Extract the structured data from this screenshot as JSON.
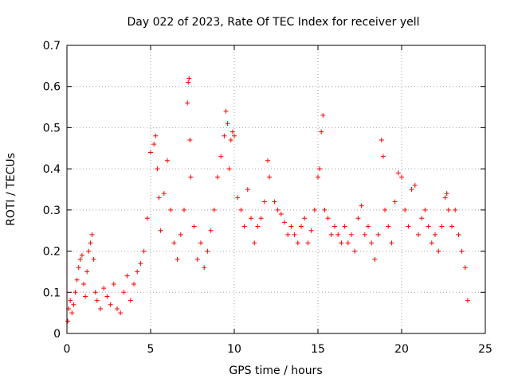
{
  "chart_data": {
    "type": "scatter",
    "title": "Day 022 of 2023, Rate Of TEC Index for receiver yell",
    "xlabel": "GPS time / hours",
    "ylabel": "ROTI / TECUs",
    "xlim": [
      0,
      25
    ],
    "ylim": [
      0,
      0.7
    ],
    "xticks": [
      0,
      5,
      10,
      15,
      20,
      25
    ],
    "xtick_labels": [
      "0",
      "5",
      "10",
      "15",
      "20",
      "25"
    ],
    "yticks": [
      0,
      0.1,
      0.2,
      0.3,
      0.4,
      0.5,
      0.6,
      0.7
    ],
    "ytick_labels": [
      "0",
      "0.1",
      "0.2",
      "0.3",
      "0.4",
      "0.5",
      "0.6",
      "0.7"
    ],
    "grid": true,
    "marker": "+",
    "color": "#ff0000",
    "series": [
      {
        "name": "ROTI",
        "points": [
          [
            0.05,
            0.03
          ],
          [
            0.1,
            0.06
          ],
          [
            0.2,
            0.08
          ],
          [
            0.3,
            0.05
          ],
          [
            0.4,
            0.07
          ],
          [
            0.5,
            0.1
          ],
          [
            0.6,
            0.13
          ],
          [
            0.7,
            0.16
          ],
          [
            0.8,
            0.18
          ],
          [
            0.9,
            0.19
          ],
          [
            1.0,
            0.12
          ],
          [
            1.1,
            0.09
          ],
          [
            1.2,
            0.15
          ],
          [
            1.3,
            0.2
          ],
          [
            1.4,
            0.22
          ],
          [
            1.5,
            0.24
          ],
          [
            1.6,
            0.18
          ],
          [
            1.7,
            0.1
          ],
          [
            1.8,
            0.08
          ],
          [
            2.0,
            0.06
          ],
          [
            2.2,
            0.11
          ],
          [
            2.4,
            0.09
          ],
          [
            2.6,
            0.07
          ],
          [
            2.8,
            0.12
          ],
          [
            3.0,
            0.06
          ],
          [
            3.2,
            0.05
          ],
          [
            3.4,
            0.1
          ],
          [
            3.6,
            0.14
          ],
          [
            3.8,
            0.08
          ],
          [
            4.0,
            0.12
          ],
          [
            4.2,
            0.15
          ],
          [
            4.4,
            0.17
          ],
          [
            4.6,
            0.2
          ],
          [
            4.8,
            0.28
          ],
          [
            5.0,
            0.44
          ],
          [
            5.2,
            0.46
          ],
          [
            5.3,
            0.48
          ],
          [
            5.4,
            0.4
          ],
          [
            5.5,
            0.33
          ],
          [
            5.6,
            0.25
          ],
          [
            5.8,
            0.34
          ],
          [
            6.0,
            0.42
          ],
          [
            6.2,
            0.3
          ],
          [
            6.4,
            0.22
          ],
          [
            6.6,
            0.18
          ],
          [
            6.8,
            0.24
          ],
          [
            7.0,
            0.3
          ],
          [
            7.2,
            0.56
          ],
          [
            7.25,
            0.61
          ],
          [
            7.3,
            0.62
          ],
          [
            7.35,
            0.47
          ],
          [
            7.4,
            0.38
          ],
          [
            7.6,
            0.26
          ],
          [
            7.8,
            0.18
          ],
          [
            8.0,
            0.22
          ],
          [
            8.2,
            0.16
          ],
          [
            8.4,
            0.2
          ],
          [
            8.6,
            0.25
          ],
          [
            8.8,
            0.3
          ],
          [
            9.0,
            0.38
          ],
          [
            9.2,
            0.43
          ],
          [
            9.4,
            0.48
          ],
          [
            9.5,
            0.54
          ],
          [
            9.6,
            0.51
          ],
          [
            9.7,
            0.4
          ],
          [
            9.8,
            0.47
          ],
          [
            9.9,
            0.49
          ],
          [
            10.0,
            0.48
          ],
          [
            10.2,
            0.33
          ],
          [
            10.4,
            0.3
          ],
          [
            10.6,
            0.26
          ],
          [
            10.8,
            0.35
          ],
          [
            11.0,
            0.28
          ],
          [
            11.2,
            0.22
          ],
          [
            11.4,
            0.26
          ],
          [
            11.6,
            0.28
          ],
          [
            11.8,
            0.32
          ],
          [
            12.0,
            0.42
          ],
          [
            12.1,
            0.38
          ],
          [
            12.4,
            0.32
          ],
          [
            12.6,
            0.3
          ],
          [
            12.8,
            0.29
          ],
          [
            13.0,
            0.27
          ],
          [
            13.2,
            0.24
          ],
          [
            13.4,
            0.26
          ],
          [
            13.6,
            0.24
          ],
          [
            13.8,
            0.22
          ],
          [
            14.0,
            0.26
          ],
          [
            14.2,
            0.28
          ],
          [
            14.4,
            0.22
          ],
          [
            14.6,
            0.25
          ],
          [
            14.8,
            0.3
          ],
          [
            15.0,
            0.38
          ],
          [
            15.1,
            0.4
          ],
          [
            15.2,
            0.49
          ],
          [
            15.3,
            0.53
          ],
          [
            15.4,
            0.3
          ],
          [
            15.6,
            0.28
          ],
          [
            15.8,
            0.24
          ],
          [
            16.0,
            0.26
          ],
          [
            16.2,
            0.24
          ],
          [
            16.4,
            0.22
          ],
          [
            16.6,
            0.26
          ],
          [
            16.8,
            0.22
          ],
          [
            17.0,
            0.24
          ],
          [
            17.2,
            0.2
          ],
          [
            17.4,
            0.28
          ],
          [
            17.6,
            0.31
          ],
          [
            17.8,
            0.24
          ],
          [
            18.0,
            0.26
          ],
          [
            18.2,
            0.22
          ],
          [
            18.4,
            0.18
          ],
          [
            18.6,
            0.24
          ],
          [
            18.8,
            0.47
          ],
          [
            18.9,
            0.43
          ],
          [
            19.0,
            0.3
          ],
          [
            19.2,
            0.26
          ],
          [
            19.4,
            0.22
          ],
          [
            19.6,
            0.32
          ],
          [
            19.8,
            0.39
          ],
          [
            20.0,
            0.38
          ],
          [
            20.2,
            0.3
          ],
          [
            20.4,
            0.26
          ],
          [
            20.6,
            0.35
          ],
          [
            20.8,
            0.36
          ],
          [
            21.0,
            0.24
          ],
          [
            21.2,
            0.28
          ],
          [
            21.4,
            0.3
          ],
          [
            21.6,
            0.26
          ],
          [
            21.8,
            0.22
          ],
          [
            22.0,
            0.24
          ],
          [
            22.2,
            0.2
          ],
          [
            22.4,
            0.26
          ],
          [
            22.6,
            0.33
          ],
          [
            22.7,
            0.34
          ],
          [
            22.8,
            0.3
          ],
          [
            23.0,
            0.26
          ],
          [
            23.2,
            0.3
          ],
          [
            23.4,
            0.24
          ],
          [
            23.6,
            0.2
          ],
          [
            23.8,
            0.16
          ],
          [
            23.95,
            0.08
          ]
        ]
      }
    ]
  }
}
